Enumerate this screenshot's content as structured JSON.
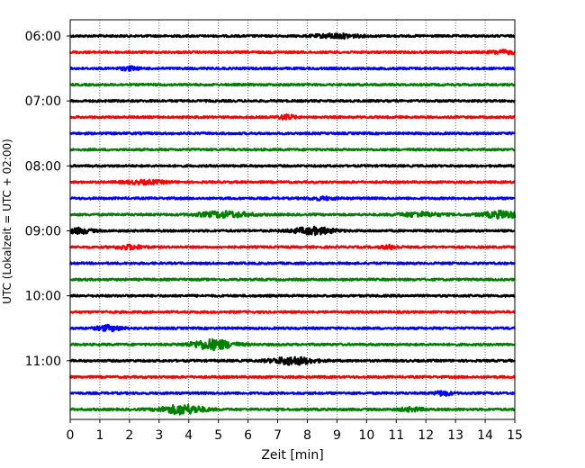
{
  "chart_data": {
    "type": "line",
    "title": "",
    "xlabel": "Zeit  [min]",
    "ylabel": "UTC (Lokalzeit = UTC + 02:00)",
    "xlim": [
      0,
      15
    ],
    "x_ticks": [
      "0",
      "1",
      "2",
      "3",
      "4",
      "5",
      "6",
      "7",
      "8",
      "9",
      "10",
      "11",
      "12",
      "13",
      "14",
      "15"
    ],
    "y_tick_labels": [
      "06:00",
      "07:00",
      "08:00",
      "09:00",
      "10:00",
      "11:00"
    ],
    "grid": "vertical dotted lines at each minute",
    "legend": "none",
    "color_cycle": [
      "#000000",
      "#ff0000",
      "#0000ff",
      "#008000"
    ],
    "series": [
      {
        "start": "06:00",
        "bursts": [
          [
            9.0,
            0.5,
            0.5
          ]
        ]
      },
      {
        "start": "06:15",
        "bursts": [
          [
            14.6,
            0.3,
            0.4
          ]
        ]
      },
      {
        "start": "06:30",
        "bursts": [
          [
            2.0,
            0.2,
            0.4
          ]
        ]
      },
      {
        "start": "06:45",
        "bursts": []
      },
      {
        "start": "07:00",
        "bursts": []
      },
      {
        "start": "07:15",
        "bursts": [
          [
            7.3,
            0.2,
            0.5
          ]
        ]
      },
      {
        "start": "07:30",
        "bursts": []
      },
      {
        "start": "07:45",
        "bursts": []
      },
      {
        "start": "08:00",
        "bursts": []
      },
      {
        "start": "08:15",
        "bursts": [
          [
            2.5,
            0.5,
            0.4
          ]
        ]
      },
      {
        "start": "08:30",
        "bursts": [
          [
            8.5,
            0.3,
            0.3
          ]
        ]
      },
      {
        "start": "08:45",
        "bursts": [
          [
            5.2,
            0.6,
            0.7
          ],
          [
            11.8,
            0.5,
            0.5
          ],
          [
            14.6,
            0.5,
            0.8
          ]
        ]
      },
      {
        "start": "09:00",
        "bursts": [
          [
            0.3,
            0.3,
            0.6
          ],
          [
            8.2,
            0.5,
            0.8
          ]
        ]
      },
      {
        "start": "09:15",
        "bursts": [
          [
            2.0,
            0.3,
            0.5
          ],
          [
            10.8,
            0.2,
            0.4
          ]
        ]
      },
      {
        "start": "09:30",
        "bursts": []
      },
      {
        "start": "09:45",
        "bursts": []
      },
      {
        "start": "10:00",
        "bursts": []
      },
      {
        "start": "10:15",
        "bursts": []
      },
      {
        "start": "10:30",
        "bursts": [
          [
            1.3,
            0.3,
            0.6
          ]
        ]
      },
      {
        "start": "10:45",
        "bursts": [
          [
            4.8,
            0.5,
            1.2
          ]
        ]
      },
      {
        "start": "11:00",
        "bursts": [
          [
            7.5,
            0.5,
            0.9
          ]
        ]
      },
      {
        "start": "11:15",
        "bursts": []
      },
      {
        "start": "11:30",
        "bursts": [
          [
            12.6,
            0.2,
            0.5
          ]
        ]
      },
      {
        "start": "11:45",
        "bursts": [
          [
            3.8,
            0.5,
            1.1
          ],
          [
            11.5,
            0.3,
            0.4
          ]
        ]
      }
    ]
  }
}
